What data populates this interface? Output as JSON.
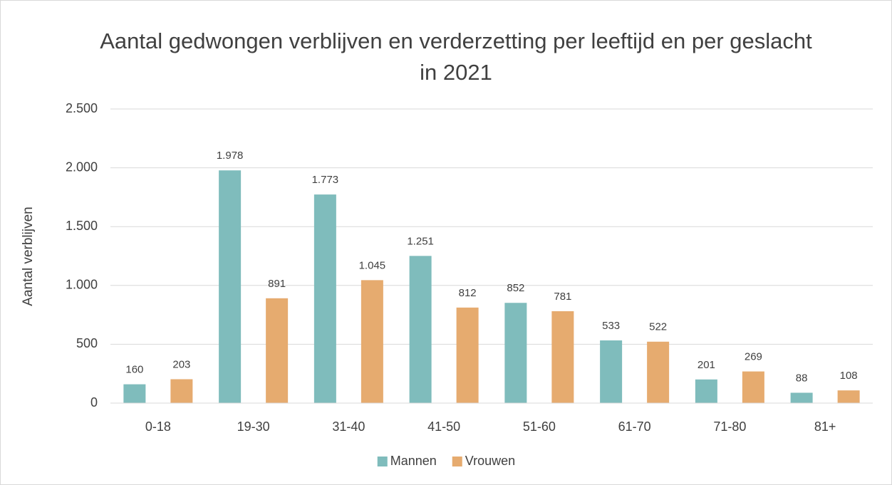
{
  "chart_data": {
    "type": "bar",
    "title": "Aantal gedwongen verblijven en verderzetting per leeftijd en per geslacht in 2021",
    "y_label": "Aantal verblijven",
    "categories": [
      "0-18",
      "19-30",
      "31-40",
      "41-50",
      "51-60",
      "61-70",
      "71-80",
      "81+"
    ],
    "series": [
      {
        "name": "Mannen",
        "color": "#7fbcbc",
        "values": [
          160,
          1978,
          1773,
          1251,
          852,
          533,
          201,
          88
        ],
        "value_labels": [
          "160",
          "1.978",
          "1.773",
          "1.251",
          "852",
          "533",
          "201",
          "88"
        ]
      },
      {
        "name": "Vrouwen",
        "color": "#e6ab6f",
        "values": [
          203,
          891,
          1045,
          812,
          781,
          522,
          269,
          108
        ],
        "value_labels": [
          "203",
          "891",
          "1.045",
          "812",
          "781",
          "522",
          "269",
          "108"
        ]
      }
    ],
    "ylim": [
      0,
      2500
    ],
    "yticks": [
      0,
      500,
      {
        "value": 1000,
        "label": "1.000"
      },
      {
        "value": 1500,
        "label": "1.500"
      },
      {
        "value": 2000,
        "label": "2.000"
      },
      {
        "value": 2500,
        "label": "2.500"
      }
    ],
    "grid": true,
    "legend": "bottom"
  }
}
